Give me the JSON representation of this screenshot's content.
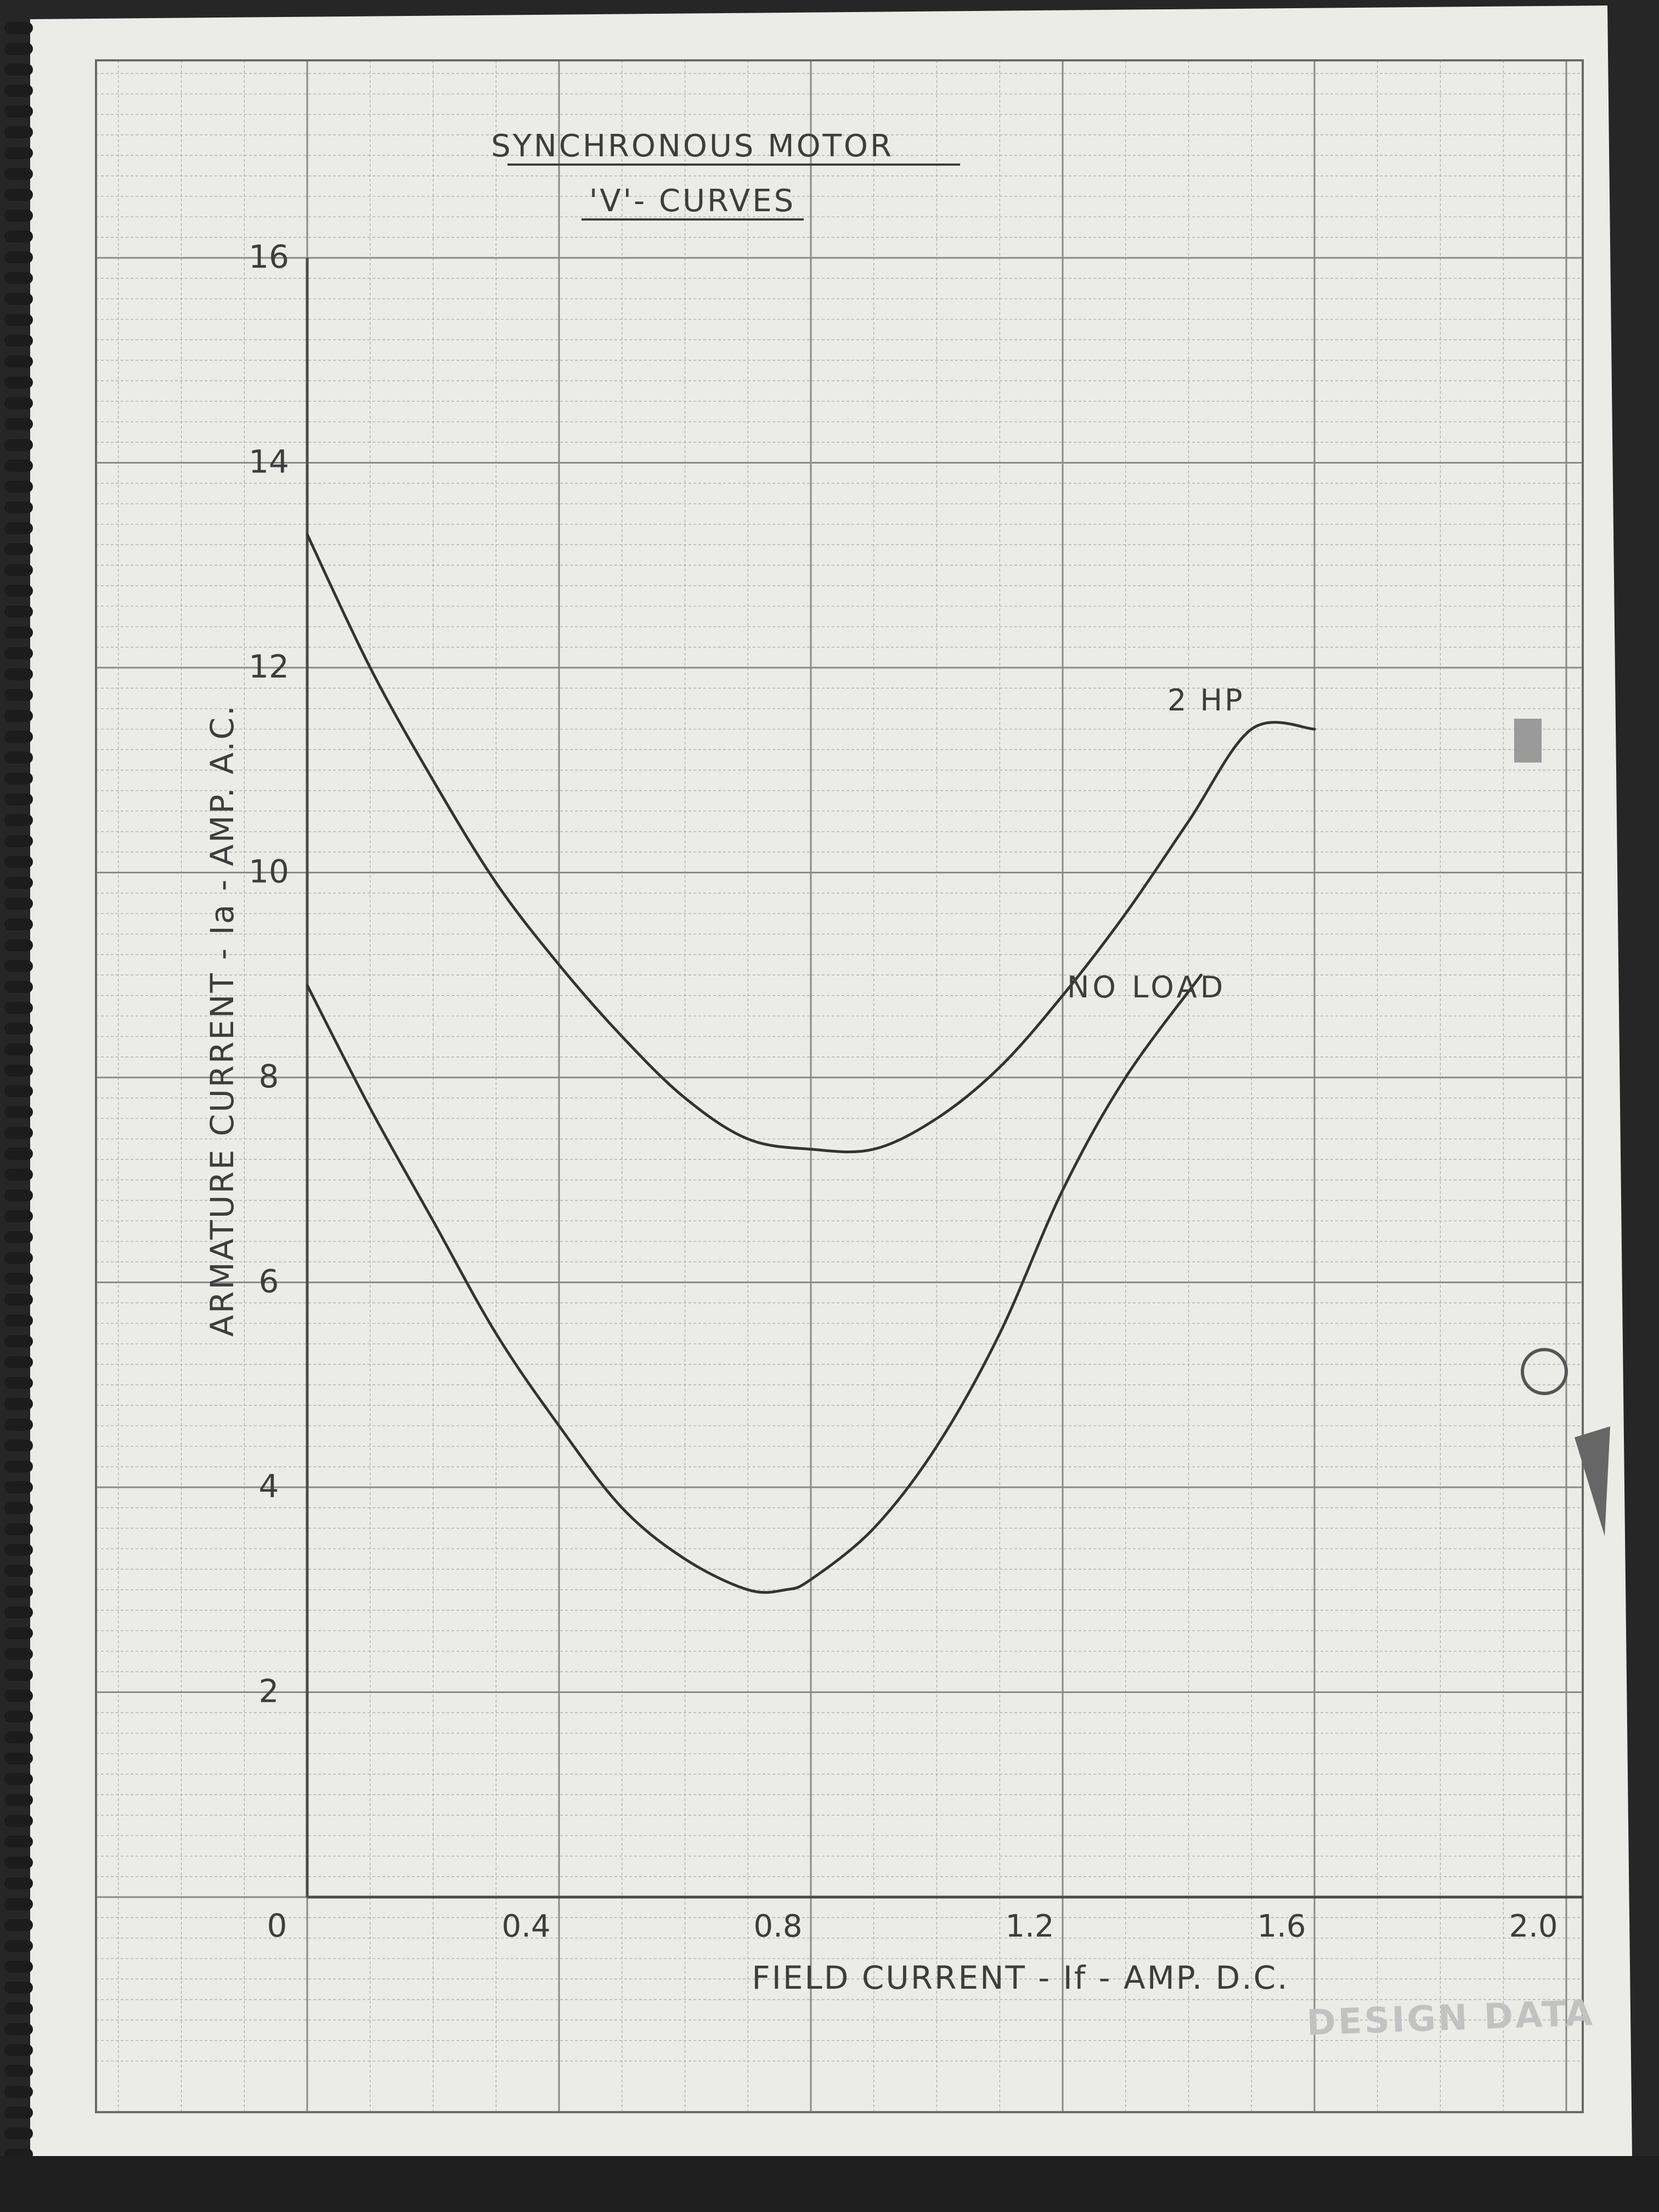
{
  "chart_data": {
    "type": "line",
    "title": "SYNCHRONOUS MOTOR",
    "subtitle": "'V'- CURVES",
    "xlabel": "FIELD CURRENT - If - AMP. D.C.",
    "ylabel": "ARMATURE CURRENT - Ia - AMP. A.C.",
    "xlim": [
      0.0,
      2.0
    ],
    "ylim": [
      0,
      16
    ],
    "x_ticks": [
      0.4,
      0.8,
      1.2,
      1.6,
      2.0
    ],
    "x_tick_labels": [
      "0.4",
      "0.8",
      "1.2",
      "1.6",
      "2.0"
    ],
    "y_ticks": [
      2,
      4,
      6,
      8,
      10,
      12,
      14,
      16
    ],
    "y_tick_labels": [
      "2",
      "4",
      "6",
      "8",
      "10",
      "12",
      "14",
      "16"
    ],
    "origin_label": "0",
    "grid": true,
    "series": [
      {
        "name": "2 HP",
        "x": [
          0.0,
          0.1,
          0.2,
          0.3,
          0.4,
          0.5,
          0.6,
          0.7,
          0.8,
          0.9,
          1.0,
          1.1,
          1.2,
          1.3,
          1.4,
          1.5,
          1.6
        ],
        "y": [
          13.3,
          12.0,
          10.9,
          9.9,
          9.1,
          8.4,
          7.8,
          7.4,
          7.3,
          7.3,
          7.6,
          8.1,
          8.8,
          9.6,
          10.5,
          11.4,
          11.4
        ]
      },
      {
        "name": "NO LOAD",
        "x": [
          0.0,
          0.1,
          0.2,
          0.3,
          0.4,
          0.5,
          0.6,
          0.7,
          0.76,
          0.8,
          0.9,
          1.0,
          1.1,
          1.2,
          1.3,
          1.42
        ],
        "y": [
          8.9,
          7.7,
          6.6,
          5.5,
          4.6,
          3.8,
          3.3,
          3.0,
          3.0,
          3.1,
          3.6,
          4.4,
          5.5,
          6.9,
          8.0,
          9.0
        ]
      }
    ],
    "stamp_text": "DESIGN DATA"
  },
  "colors": {
    "paper": "#ebebe8",
    "grid": "#8d8d8d",
    "ink": "#3d3d3d",
    "binding": "#1c1c1c"
  }
}
